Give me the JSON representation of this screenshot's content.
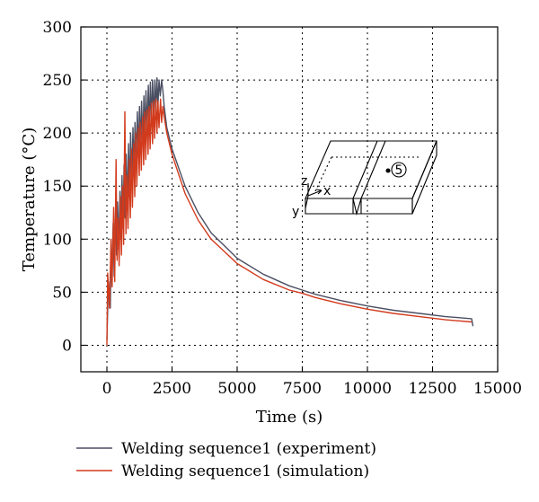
{
  "chart_data": {
    "type": "line",
    "xlabel": "Time (s)",
    "ylabel": "Temperature (°C)",
    "xlim": [
      -1000,
      15000
    ],
    "ylim": [
      -25,
      300
    ],
    "xticks": [
      0,
      2500,
      5000,
      7500,
      10000,
      12500,
      15000
    ],
    "yticks": [
      0,
      50,
      100,
      150,
      200,
      250,
      300
    ],
    "grid": true,
    "legend_position": "bottom-left",
    "series": [
      {
        "name": "Welding sequence1 (experiment)",
        "color": "#4b4f63",
        "x": [
          0,
          60,
          130,
          160,
          200,
          240,
          280,
          330,
          370,
          410,
          450,
          500,
          540,
          580,
          620,
          660,
          700,
          740,
          790,
          830,
          870,
          910,
          960,
          1000,
          1040,
          1080,
          1120,
          1170,
          1210,
          1250,
          1290,
          1330,
          1380,
          1420,
          1460,
          1500,
          1540,
          1590,
          1630,
          1670,
          1710,
          1750,
          1800,
          1840,
          1880,
          1920,
          1960,
          2000,
          2050,
          2100,
          2150,
          2200,
          2300,
          2500,
          3000,
          3500,
          4000,
          5000,
          6000,
          7000,
          7500,
          8000,
          9000,
          10000,
          11000,
          12000,
          13000,
          13500,
          14000,
          14050
        ],
        "y": [
          5,
          60,
          35,
          90,
          70,
          115,
          65,
          125,
          85,
          135,
          90,
          145,
          100,
          160,
          110,
          170,
          120,
          180,
          130,
          190,
          140,
          200,
          150,
          205,
          160,
          210,
          170,
          220,
          180,
          225,
          185,
          230,
          190,
          235,
          195,
          240,
          200,
          245,
          205,
          248,
          210,
          250,
          215,
          250,
          220,
          252,
          225,
          250,
          235,
          250,
          240,
          225,
          205,
          185,
          150,
          125,
          106,
          82,
          67,
          56,
          52,
          48,
          42,
          37,
          33,
          30,
          27,
          26,
          25,
          18
        ]
      },
      {
        "name": "Welding sequence1 (simulation)",
        "color": "#d23a1c",
        "x": [
          0,
          30,
          100,
          160,
          200,
          260,
          300,
          350,
          390,
          430,
          470,
          520,
          560,
          600,
          640,
          690,
          730,
          770,
          810,
          860,
          900,
          940,
          980,
          1030,
          1070,
          1110,
          1150,
          1200,
          1240,
          1280,
          1320,
          1370,
          1410,
          1450,
          1490,
          1540,
          1580,
          1620,
          1660,
          1710,
          1750,
          1790,
          1830,
          1880,
          1920,
          1960,
          2000,
          2060,
          2100,
          2150,
          2200,
          2300,
          2500,
          3000,
          3500,
          4000,
          5000,
          6000,
          7000,
          7500,
          8000,
          9000,
          10000,
          11000,
          12000,
          13000,
          14000
        ],
        "y": [
          0,
          68,
          35,
          100,
          55,
          130,
          60,
          175,
          80,
          120,
          75,
          140,
          85,
          150,
          95,
          220,
          105,
          160,
          110,
          175,
          120,
          185,
          130,
          190,
          140,
          200,
          150,
          205,
          160,
          210,
          165,
          215,
          170,
          220,
          175,
          222,
          180,
          225,
          185,
          228,
          190,
          230,
          195,
          232,
          200,
          230,
          205,
          232,
          210,
          225,
          215,
          200,
          180,
          143,
          118,
          100,
          77,
          62,
          52,
          49,
          45,
          39,
          34,
          30,
          27,
          24,
          22
        ]
      }
    ],
    "inset": {
      "axis_labels": [
        "z",
        "x",
        "y"
      ],
      "point_label": "5"
    }
  }
}
